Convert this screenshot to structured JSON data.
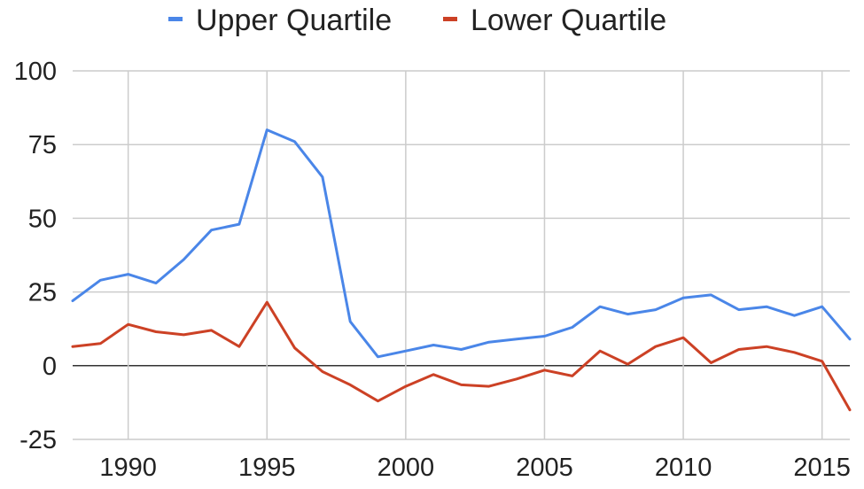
{
  "chart_data": {
    "type": "line",
    "x": [
      1988,
      1989,
      1990,
      1991,
      1992,
      1993,
      1994,
      1995,
      1996,
      1997,
      1998,
      1999,
      2000,
      2001,
      2002,
      2003,
      2004,
      2005,
      2006,
      2007,
      2008,
      2009,
      2010,
      2011,
      2012,
      2013,
      2014,
      2015,
      2016
    ],
    "series": [
      {
        "name": "Upper Quartile",
        "color": "#4a86e8",
        "values": [
          22,
          29,
          31,
          28,
          36,
          46,
          48,
          80,
          76,
          64,
          15,
          3,
          5,
          7,
          5.5,
          8,
          9,
          10,
          13,
          20,
          17.5,
          19,
          23,
          24,
          19,
          20,
          17,
          20,
          9
        ]
      },
      {
        "name": "Lower Quartile",
        "color": "#cc4125",
        "values": [
          6.5,
          7.5,
          14,
          11.5,
          10.5,
          12,
          6.5,
          21.5,
          6,
          -2,
          -6.5,
          -12,
          -7,
          -3,
          -6.5,
          -7,
          -4.5,
          -1.5,
          -3.5,
          5,
          0.5,
          6.5,
          9.5,
          1,
          5.5,
          6.5,
          4.5,
          1.5,
          -15
        ]
      }
    ],
    "yticks": [
      "100",
      "75",
      "50",
      "25",
      "0",
      "-25"
    ],
    "ytick_values": [
      100,
      75,
      50,
      25,
      0,
      -25
    ],
    "xticks": [
      "1990",
      "1995",
      "2000",
      "2005",
      "2010",
      "2015"
    ],
    "xtick_values": [
      1990,
      1995,
      2000,
      2005,
      2010,
      2015
    ],
    "ylim": [
      -25,
      100
    ],
    "xlim": [
      1988,
      2016
    ],
    "title": "",
    "xlabel": "",
    "ylabel": "",
    "grid": true,
    "legend_position": "top-center"
  }
}
